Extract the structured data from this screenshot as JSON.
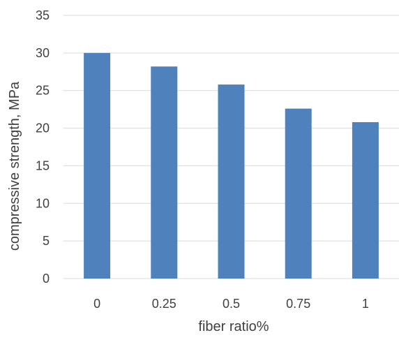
{
  "chart_data": {
    "type": "bar",
    "categories": [
      "0",
      "0.25",
      "0.5",
      "0.75",
      "1"
    ],
    "values": [
      30,
      28.2,
      25.8,
      22.6,
      20.8
    ],
    "title": "",
    "xlabel": "fiber ratio%",
    "ylabel": "compressive strength, MPa",
    "ylim": [
      0,
      35
    ],
    "yticks": [
      "0",
      "5",
      "10",
      "15",
      "20",
      "25",
      "30",
      "35"
    ],
    "grid": true,
    "legend": "none",
    "bar_color": "#4f81bd",
    "grid_color": "#d9d9d9",
    "text_color": "#404040"
  }
}
